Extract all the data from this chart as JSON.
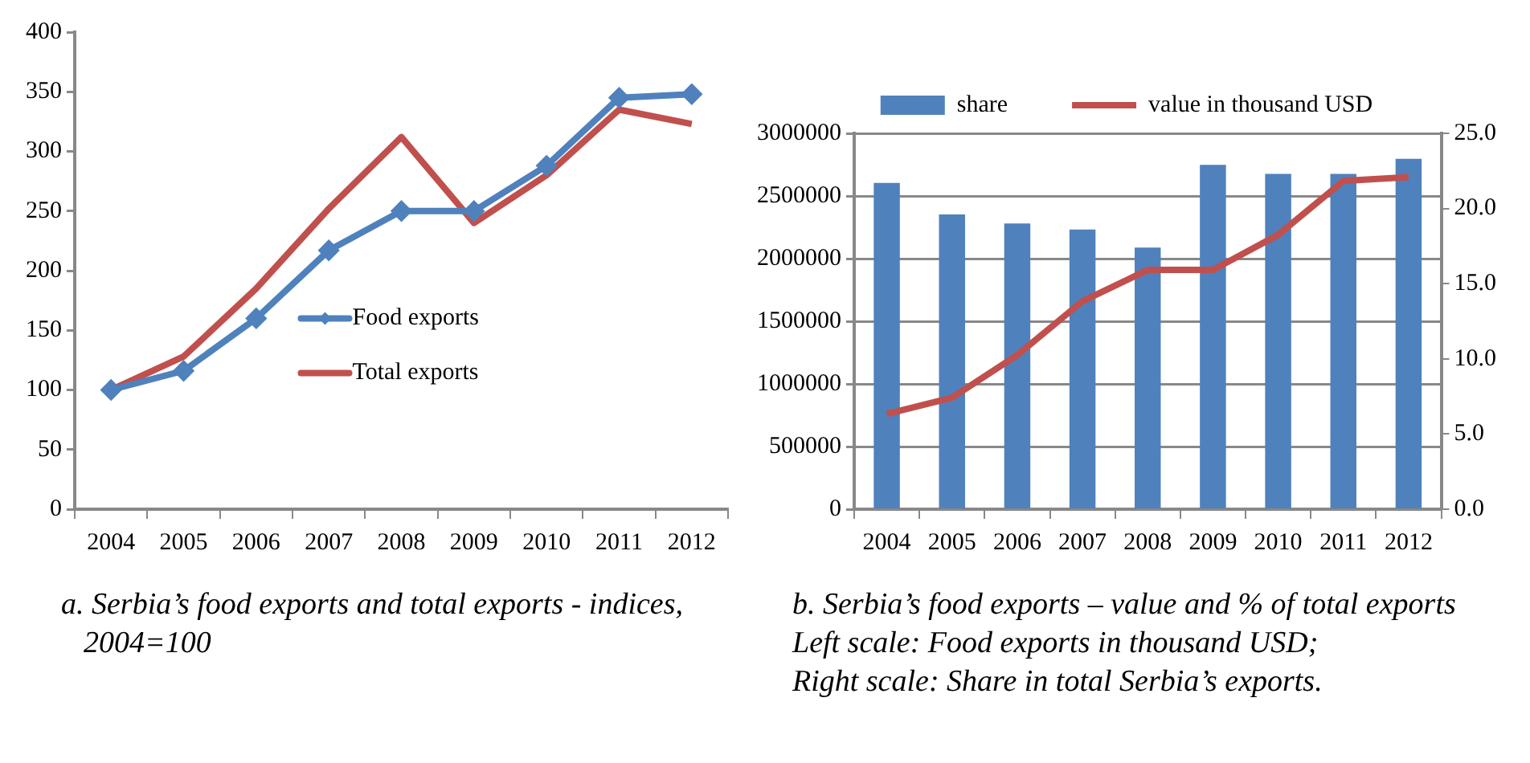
{
  "chart_data": [
    {
      "type": "line",
      "title": "a. Serbia’s food exports and total exports - indices, 2004=100",
      "categories": [
        "2004",
        "2005",
        "2006",
        "2007",
        "2008",
        "2009",
        "2010",
        "2011",
        "2012"
      ],
      "series": [
        {
          "name": "Food exports",
          "color": "#4f81bd",
          "marker": "diamond",
          "values": [
            100,
            116,
            160,
            217,
            250,
            250,
            288,
            345,
            348
          ]
        },
        {
          "name": "Total exports",
          "color": "#c0504d",
          "marker": "none",
          "values": [
            100,
            128,
            185,
            252,
            312,
            240,
            280,
            335,
            323
          ]
        }
      ],
      "ylim": [
        0,
        400
      ],
      "yticks": [
        0,
        50,
        100,
        150,
        200,
        250,
        300,
        350,
        400
      ],
      "grid": false,
      "legend": "center"
    },
    {
      "type": "bar",
      "title": "b. Serbia’s food exports – value and % of total exports",
      "annotations": [
        "Left scale: Food exports in thousand USD;",
        "Right scale: Share in total Serbia’s exports."
      ],
      "categories": [
        "2004",
        "2005",
        "2006",
        "2007",
        "2008",
        "2009",
        "2010",
        "2011",
        "2012"
      ],
      "series": [
        {
          "name": "share",
          "type": "bar",
          "axis": "y2",
          "color": "#4f81bd",
          "values": [
            21.7,
            19.6,
            19.0,
            18.6,
            17.4,
            22.9,
            22.3,
            22.3,
            23.3
          ]
        },
        {
          "name": "value in thousand USD",
          "type": "line",
          "color": "#c0504d",
          "marker": "none",
          "values": [
            760000,
            890000,
            1230000,
            1660000,
            1910000,
            1910000,
            2190000,
            2620000,
            2650000
          ]
        }
      ],
      "ylim": [
        0,
        3000000
      ],
      "yticks": [
        0,
        500000,
        1000000,
        1500000,
        2000000,
        2500000,
        3000000
      ],
      "y2lim": [
        0,
        25
      ],
      "y2ticks": [
        {
          "value": 0,
          "label": "0.0"
        },
        {
          "value": 5,
          "label": "5.0"
        },
        {
          "value": 10,
          "label": "10.0"
        },
        {
          "value": 15,
          "label": "15.0"
        },
        {
          "value": 20,
          "label": "20.0"
        },
        {
          "value": 25,
          "label": "25.0"
        }
      ],
      "grid": "y",
      "legend": "top"
    }
  ]
}
